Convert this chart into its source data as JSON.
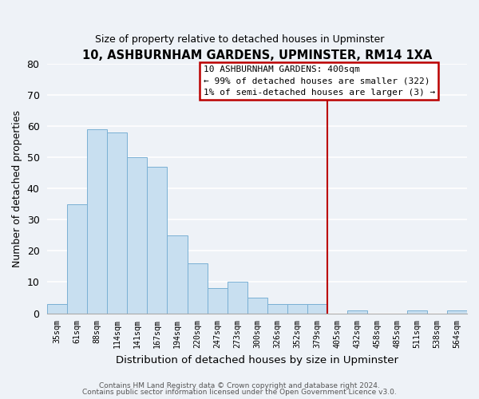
{
  "title": "10, ASHBURNHAM GARDENS, UPMINSTER, RM14 1XA",
  "subtitle": "Size of property relative to detached houses in Upminster",
  "xlabel": "Distribution of detached houses by size in Upminster",
  "ylabel": "Number of detached properties",
  "bar_color": "#c8dff0",
  "bar_edge_color": "#7ab0d4",
  "background_color": "#eef2f7",
  "grid_color": "#ffffff",
  "bin_labels": [
    "35sqm",
    "61sqm",
    "88sqm",
    "114sqm",
    "141sqm",
    "167sqm",
    "194sqm",
    "220sqm",
    "247sqm",
    "273sqm",
    "300sqm",
    "326sqm",
    "352sqm",
    "379sqm",
    "405sqm",
    "432sqm",
    "458sqm",
    "485sqm",
    "511sqm",
    "538sqm",
    "564sqm"
  ],
  "bar_heights": [
    3,
    35,
    59,
    58,
    50,
    47,
    25,
    16,
    8,
    10,
    5,
    3,
    3,
    3,
    0,
    1,
    0,
    0,
    1,
    0,
    1
  ],
  "ylim": [
    0,
    80
  ],
  "yticks": [
    0,
    10,
    20,
    30,
    40,
    50,
    60,
    70,
    80
  ],
  "vline_index": 14,
  "vline_color": "#bb0000",
  "annotation_title": "10 ASHBURNHAM GARDENS: 400sqm",
  "annotation_line1": "← 99% of detached houses are smaller (322)",
  "annotation_line2": "1% of semi-detached houses are larger (3) →",
  "annotation_box_color": "#ffffff",
  "annotation_box_edge": "#bb0000",
  "footer1": "Contains HM Land Registry data © Crown copyright and database right 2024.",
  "footer2": "Contains public sector information licensed under the Open Government Licence v3.0."
}
